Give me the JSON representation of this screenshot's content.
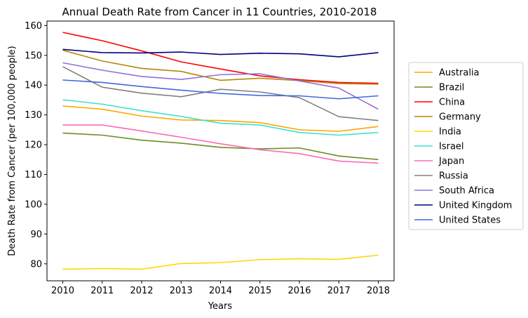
{
  "chart_data": {
    "type": "line",
    "title": "Annual Death Rate from Cancer in 11 Countries, 2010-2018",
    "xlabel": "Years",
    "ylabel": "Death Rate from Cancer (per 100,000 people)",
    "x": [
      2010,
      2011,
      2012,
      2013,
      2014,
      2015,
      2016,
      2017,
      2018
    ],
    "xlim": [
      2009.6,
      2018.4
    ],
    "ylim": [
      74.3,
      161.5
    ],
    "yticks": [
      80,
      90,
      100,
      110,
      120,
      130,
      140,
      150,
      160
    ],
    "grid": false,
    "legend_position": "right",
    "series": [
      {
        "name": "Australia",
        "color": "#ffa500",
        "values": [
          133.0,
          131.9,
          129.6,
          128.3,
          128.1,
          127.4,
          125.0,
          124.5,
          126.1
        ]
      },
      {
        "name": "Brazil",
        "color": "#6b8e23",
        "values": [
          123.9,
          123.2,
          121.5,
          120.5,
          119.1,
          118.6,
          118.9,
          116.2,
          115.0
        ]
      },
      {
        "name": "China",
        "color": "#ff0000",
        "values": [
          157.7,
          154.9,
          151.5,
          147.8,
          145.4,
          143.1,
          141.8,
          140.9,
          140.6
        ]
      },
      {
        "name": "Germany",
        "color": "#b8860b",
        "values": [
          151.7,
          148.1,
          145.6,
          144.6,
          141.6,
          142.3,
          141.5,
          140.5,
          140.3
        ]
      },
      {
        "name": "India",
        "color": "#ffd700",
        "values": [
          78.2,
          78.4,
          78.2,
          80.1,
          80.4,
          81.4,
          81.7,
          81.5,
          82.9
        ]
      },
      {
        "name": "Israel",
        "color": "#40e0d0",
        "values": [
          135.1,
          133.6,
          131.4,
          129.5,
          127.2,
          126.6,
          124.1,
          123.2,
          124.1
        ]
      },
      {
        "name": "Japan",
        "color": "#ff69b4",
        "values": [
          126.6,
          126.6,
          124.6,
          122.5,
          120.3,
          118.3,
          117.0,
          114.5,
          113.8
        ]
      },
      {
        "name": "Russia",
        "color": "#808080",
        "values": [
          146.2,
          139.3,
          137.3,
          136.1,
          138.6,
          137.7,
          135.8,
          129.4,
          128.1
        ]
      },
      {
        "name": "South Africa",
        "color": "#9370db",
        "values": [
          147.5,
          145.0,
          142.9,
          141.9,
          143.5,
          143.8,
          141.4,
          139.0,
          131.9
        ]
      },
      {
        "name": "United Kingdom",
        "color": "#000080",
        "values": [
          152.0,
          150.9,
          150.8,
          151.1,
          150.3,
          150.7,
          150.5,
          149.5,
          150.9
        ]
      },
      {
        "name": "United States",
        "color": "#4169e1",
        "values": [
          141.7,
          140.9,
          139.5,
          138.3,
          137.2,
          136.5,
          136.4,
          135.4,
          136.4
        ]
      }
    ]
  }
}
